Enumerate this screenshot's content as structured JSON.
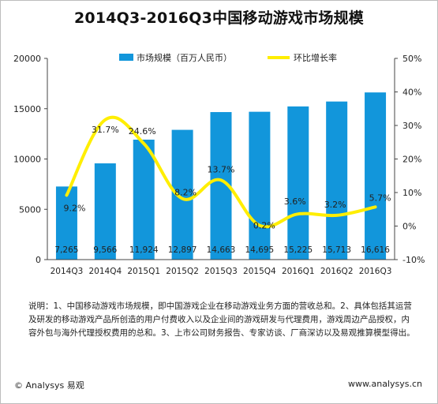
{
  "title": "2014Q3-2016Q3中国移动游戏市场规模",
  "legend": {
    "bar_label": "市场规模（百万人民币）",
    "line_label": "环比增长率"
  },
  "notes": "说明：1、中国移动游戏市场规模，即中国游戏企业在移动游戏业务方面的营收总和。2、具体包括其运营及研发的移动游戏产品所创造的用户付费收入以及企业间的游戏研发与代理费用，游戏周边产品授权，内容外包与海外代理授权费用的总和。3、上市公司财务报告、专家访谈、厂商深访以及易观推算模型得出。",
  "footer": {
    "brand": "© Analysys 易观",
    "url": "www.analysys.cn"
  },
  "colors": {
    "bar": "#1296db",
    "line": "#ffee00",
    "axis": "#444444",
    "grid": "#e6e6e6"
  },
  "chart_data": {
    "type": "bar+line",
    "categories": [
      "2014Q3",
      "2014Q4",
      "2015Q1",
      "2015Q2",
      "2015Q3",
      "2015Q4",
      "2016Q1",
      "2016Q2",
      "2016Q3"
    ],
    "series": [
      {
        "name": "市场规模（百万人民币）",
        "type": "bar",
        "axis": "left",
        "values": [
          7265,
          9566,
          11924,
          12897,
          14663,
          14695,
          15225,
          15713,
          16616
        ],
        "labels": [
          "7,265",
          "9,566",
          "11,924",
          "12,897",
          "14,663",
          "14,695",
          "15,225",
          "15,713",
          "16,616"
        ]
      },
      {
        "name": "环比增长率",
        "type": "line",
        "axis": "right",
        "values": [
          9.2,
          31.7,
          24.6,
          8.2,
          13.7,
          0.2,
          3.6,
          3.2,
          5.7
        ],
        "labels": [
          "9.2%",
          "31.7%",
          "24.6%",
          "8.2%",
          "13.7%",
          "0.2%",
          "3.6%",
          "3.2%",
          "5.7%"
        ]
      }
    ],
    "y_left": {
      "ylim": [
        0,
        20000
      ],
      "ticks": [
        0,
        5000,
        10000,
        15000,
        20000
      ],
      "tick_labels": [
        "0",
        "5000",
        "10000",
        "15000",
        "20000"
      ]
    },
    "y_right": {
      "ylim": [
        -10,
        50
      ],
      "ticks": [
        -10,
        0,
        10,
        20,
        30,
        40,
        50
      ],
      "tick_labels": [
        "-10%",
        "0%",
        "10%",
        "20%",
        "30%",
        "40%",
        "50%"
      ]
    },
    "legend_position": "top-center",
    "grid": false
  }
}
